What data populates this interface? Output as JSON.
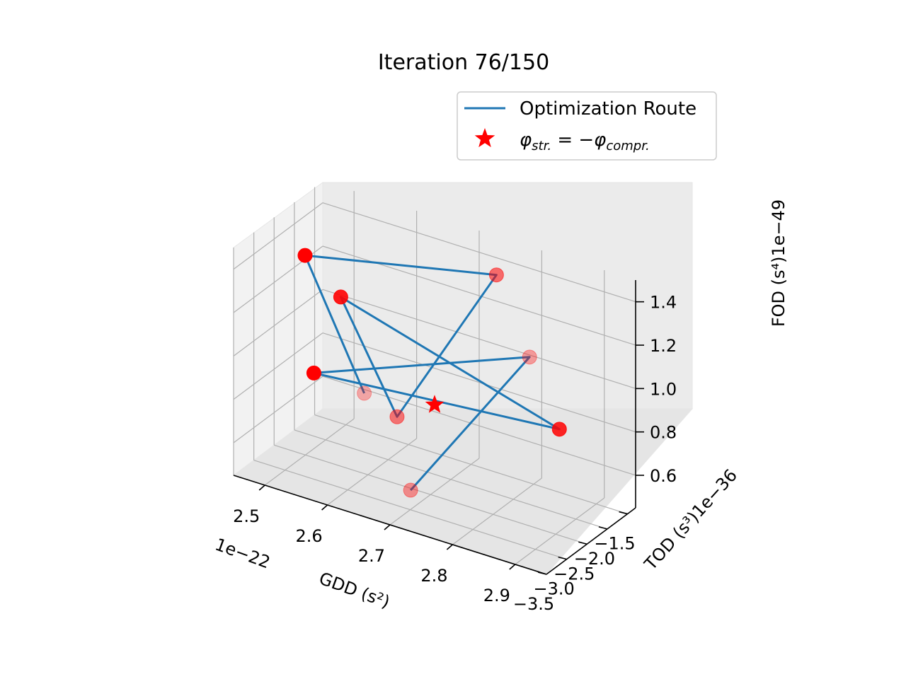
{
  "chart_data": {
    "type": "scatter",
    "title": "Iteration 76/150",
    "xlabel": "GDD (s²)",
    "x_offset": "1e−22",
    "ylabel": "TOD (s³)1e−36",
    "zlabel": "FOD (s⁴)1e−49",
    "x_ticks": [
      "2.5",
      "2.6",
      "2.7",
      "2.8",
      "2.9"
    ],
    "y_ticks": [
      "−1.5",
      "−2.0",
      "−2.5",
      "−3.0",
      "−3.5"
    ],
    "z_ticks": [
      "1.4",
      "1.2",
      "1.0",
      "0.8",
      "0.6"
    ],
    "grid": true,
    "legend_position": "upper-right",
    "legend": [
      {
        "label": "Optimization Route",
        "marker": "line",
        "color": "#1f77b4"
      },
      {
        "label": "φstr. = −φcompr.",
        "marker": "star",
        "color": "#ff0000"
      }
    ],
    "legend_math": {
      "phi": "φ",
      "sub1": "str.",
      "eq": " = −",
      "sub2": "compr."
    },
    "route_order": [
      3,
      0,
      7,
      6,
      2,
      4,
      8,
      5,
      1
    ],
    "route_points": [
      {
        "gdd": 2.48,
        "tod": -2.2,
        "fod": 1.31,
        "opacity": 1.0
      },
      {
        "gdd": 2.72,
        "tod": -3.3,
        "fod": 0.6,
        "opacity": 0.4
      },
      {
        "gdd": 2.55,
        "tod": -2.4,
        "fod": 1.21,
        "opacity": 0.9
      },
      {
        "gdd": 2.62,
        "tod": -2.9,
        "fod": 0.9,
        "opacity": 0.3
      },
      {
        "gdd": 2.88,
        "tod": -2.1,
        "fod": 0.86,
        "opacity": 0.85
      },
      {
        "gdd": 2.8,
        "tod": -1.6,
        "fod": 1.05,
        "opacity": 0.35
      },
      {
        "gdd": 2.64,
        "tod": -2.4,
        "fod": 0.74,
        "opacity": 0.5
      },
      {
        "gdd": 2.76,
        "tod": -1.8,
        "fod": 1.42,
        "opacity": 0.55
      },
      {
        "gdd": 2.52,
        "tod": -2.6,
        "fod": 0.86,
        "opacity": 1.0
      }
    ],
    "target_point": {
      "gdd": 2.7,
      "tod": -2.4,
      "fod": 0.85
    },
    "colors": {
      "route": "#1f77b4",
      "points": "#ff0000",
      "target": "#ff0000"
    }
  }
}
